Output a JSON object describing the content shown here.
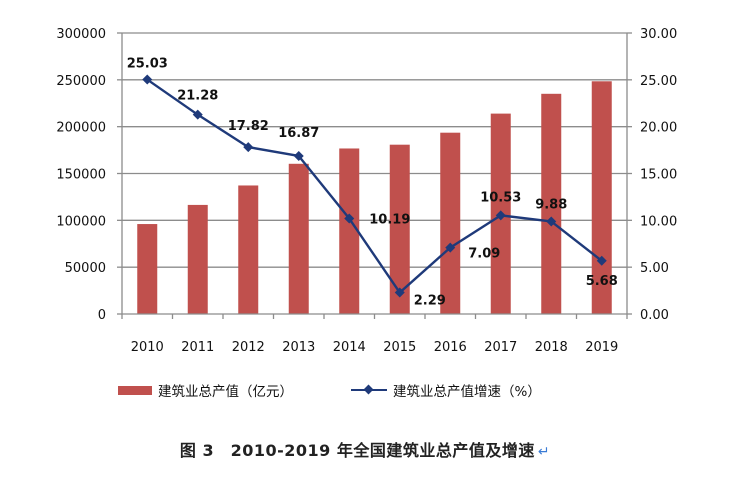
{
  "chart_data": {
    "type": "bar+line",
    "title": "图 3　2010-2019 年全国建筑业总产值及增速",
    "categories": [
      "2010",
      "2011",
      "2012",
      "2013",
      "2014",
      "2015",
      "2016",
      "2017",
      "2018",
      "2019"
    ],
    "series": [
      {
        "name": "建筑业总产值（亿元）",
        "type": "bar",
        "axis": "left",
        "color": "#C0504D",
        "values": [
          96031,
          116463,
          137218,
          160366,
          176713,
          180757,
          193567,
          213944,
          235086,
          248446
        ]
      },
      {
        "name": "建筑业总产值增速（%）",
        "type": "line",
        "axis": "right",
        "color": "#1F3A7A",
        "marker": "diamond",
        "values": [
          25.03,
          21.28,
          17.82,
          16.87,
          10.19,
          2.29,
          7.09,
          10.53,
          9.88,
          5.68
        ],
        "data_labels": [
          "25.03",
          "21.28",
          "17.82",
          "16.87",
          "10.19",
          "2.29",
          "7.09",
          "10.53",
          "9.88",
          "5.68"
        ]
      }
    ],
    "y_left": {
      "ylim": [
        0,
        300000
      ],
      "ticks": [
        "0",
        "50000",
        "100000",
        "150000",
        "200000",
        "250000",
        "300000"
      ]
    },
    "y_right": {
      "ylim": [
        0,
        30
      ],
      "ticks": [
        "0.00",
        "5.00",
        "10.00",
        "15.00",
        "20.00",
        "25.00",
        "30.00"
      ]
    },
    "xlabel": "",
    "ylabel": "",
    "grid": true,
    "legend_position": "bottom"
  },
  "caption": {
    "text": "图 3　2010-2019 年全国建筑业总产值及增速",
    "return_mark": "↵"
  }
}
